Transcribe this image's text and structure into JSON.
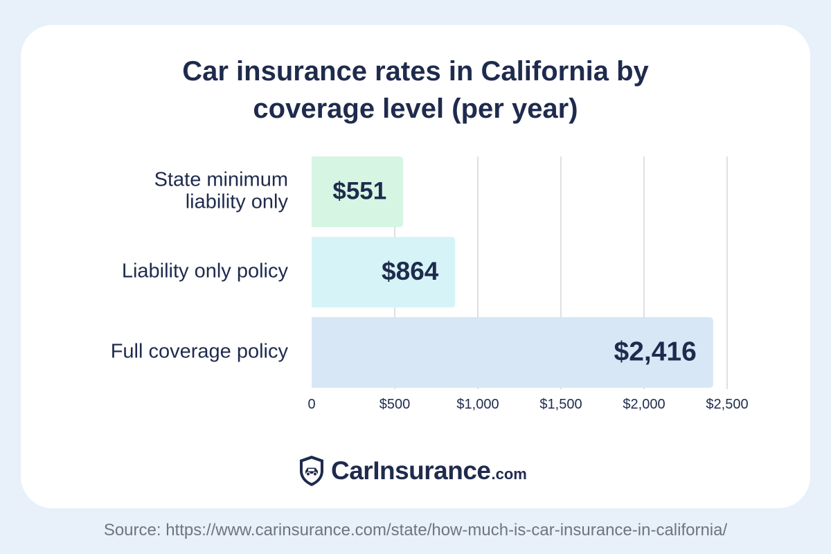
{
  "title_lines": [
    "Car insurance rates in California by",
    "coverage level (per year)"
  ],
  "chart_data": {
    "type": "bar",
    "orientation": "horizontal",
    "title": "Car insurance rates in California by coverage level (per year)",
    "categories": [
      "State minimum liability only",
      "Liability only policy",
      "Full coverage policy"
    ],
    "category_label_lines": [
      [
        "State minimum",
        "liability only"
      ],
      [
        "Liability only policy"
      ],
      [
        "Full coverage policy"
      ]
    ],
    "values": [
      551,
      864,
      2416
    ],
    "data_labels": [
      "$551",
      "$864",
      "$2,416"
    ],
    "bar_colors": [
      "#d6f5e3",
      "#d6f4f7",
      "#d7e7f5"
    ],
    "xlim": [
      0,
      2500
    ],
    "xticks": [
      0,
      500,
      1000,
      1500,
      2000,
      2500
    ],
    "xtick_labels": [
      "0",
      "$500",
      "$1,000",
      "$1,500",
      "$2,000",
      "$2,500"
    ],
    "grid": true,
    "xlabel": "",
    "ylabel": ""
  },
  "brand": {
    "name": "CarInsurance",
    "tld": ".com",
    "icon": "shield-car-icon"
  },
  "source": "Source: https://www.carinsurance.com/state/how-much-is-car-insurance-in-california/"
}
